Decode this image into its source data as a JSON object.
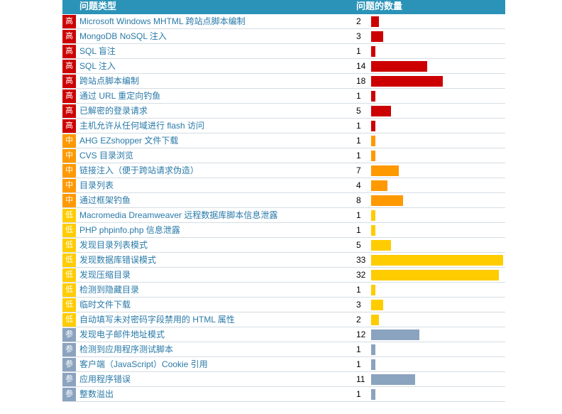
{
  "colors": {
    "header_bg": "#2b93b8",
    "high": "#cc0000",
    "medium": "#ff9900",
    "low": "#ffcc00",
    "info": "#8aa3bf",
    "link": "#2a7aa8"
  },
  "header": {
    "type_label": "问题类型",
    "count_label": "问题的数量"
  },
  "max_count": 33,
  "issues": [
    {
      "severity": "high",
      "sev_label": "高",
      "name": "Microsoft Windows MHTML 跨站点脚本编制",
      "count": 2
    },
    {
      "severity": "high",
      "sev_label": "高",
      "name": "MongoDB NoSQL 注入",
      "count": 3
    },
    {
      "severity": "high",
      "sev_label": "高",
      "name": "SQL 盲注",
      "count": 1
    },
    {
      "severity": "high",
      "sev_label": "高",
      "name": "SQL 注入",
      "count": 14
    },
    {
      "severity": "high",
      "sev_label": "高",
      "name": "跨站点脚本编制",
      "count": 18
    },
    {
      "severity": "high",
      "sev_label": "高",
      "name": "通过 URL 重定向钓鱼",
      "count": 1
    },
    {
      "severity": "high",
      "sev_label": "高",
      "name": "已解密的登录请求",
      "count": 5
    },
    {
      "severity": "high",
      "sev_label": "高",
      "name": "主机允许从任何域进行 flash 访问",
      "count": 1
    },
    {
      "severity": "medium",
      "sev_label": "中",
      "name": "AHG EZshopper 文件下载",
      "count": 1
    },
    {
      "severity": "medium",
      "sev_label": "中",
      "name": "CVS 目录浏览",
      "count": 1
    },
    {
      "severity": "medium",
      "sev_label": "中",
      "name": "链接注入（便于跨站请求伪造）",
      "count": 7
    },
    {
      "severity": "medium",
      "sev_label": "中",
      "name": "目录列表",
      "count": 4
    },
    {
      "severity": "medium",
      "sev_label": "中",
      "name": "通过框架钓鱼",
      "count": 8
    },
    {
      "severity": "low",
      "sev_label": "低",
      "name": "Macromedia Dreamweaver 远程数据库脚本信息泄露",
      "count": 1
    },
    {
      "severity": "low",
      "sev_label": "低",
      "name": "PHP phpinfo.php 信息泄露",
      "count": 1
    },
    {
      "severity": "low",
      "sev_label": "低",
      "name": "发现目录列表模式",
      "count": 5
    },
    {
      "severity": "low",
      "sev_label": "低",
      "name": "发现数据库错误模式",
      "count": 33
    },
    {
      "severity": "low",
      "sev_label": "低",
      "name": "发现压缩目录",
      "count": 32
    },
    {
      "severity": "low",
      "sev_label": "低",
      "name": "检测到隐藏目录",
      "count": 1
    },
    {
      "severity": "low",
      "sev_label": "低",
      "name": "临时文件下载",
      "count": 3
    },
    {
      "severity": "low",
      "sev_label": "低",
      "name": "自动填写未对密码字段禁用的 HTML 属性",
      "count": 2
    },
    {
      "severity": "info",
      "sev_label": "参",
      "name": "发现电子邮件地址模式",
      "count": 12
    },
    {
      "severity": "info",
      "sev_label": "参",
      "name": "检测到应用程序测试脚本",
      "count": 1
    },
    {
      "severity": "info",
      "sev_label": "参",
      "name": "客户端（JavaScript）Cookie 引用",
      "count": 1
    },
    {
      "severity": "info",
      "sev_label": "参",
      "name": "应用程序错误",
      "count": 11
    },
    {
      "severity": "info",
      "sev_label": "参",
      "name": "整数溢出",
      "count": 1
    }
  ]
}
